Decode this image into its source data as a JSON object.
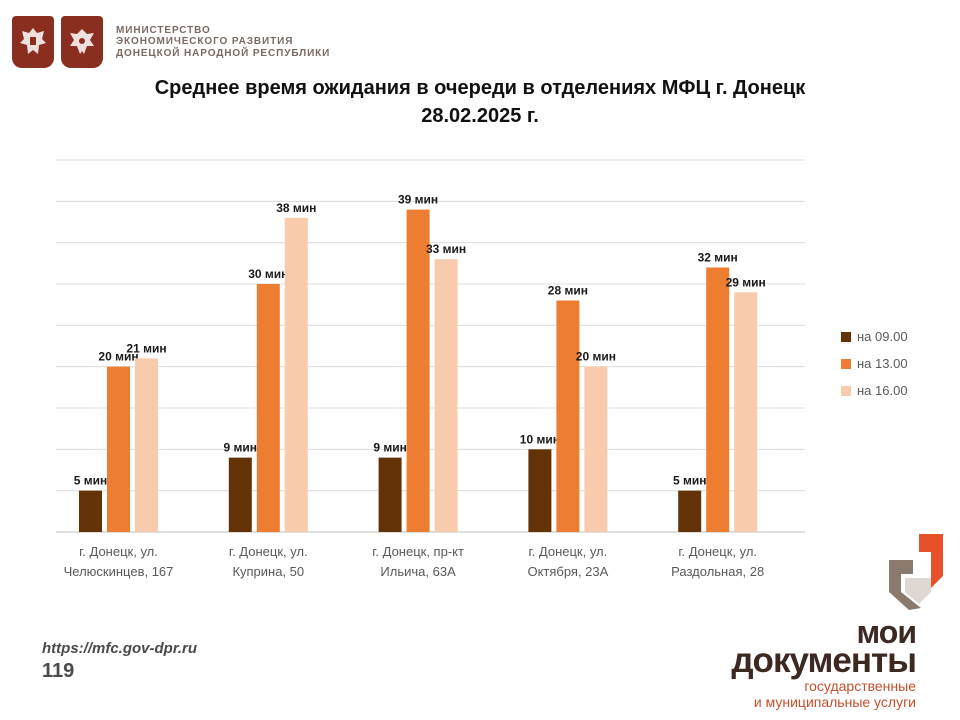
{
  "header": {
    "ministry_lines": [
      "МИНИСТЕРСТВО",
      "ЭКОНОМИЧЕСКОГО РАЗВИТИЯ",
      "ДОНЕЦКОЙ НАРОДНОЙ РЕСПУБЛИКИ"
    ],
    "emblems": [
      "russia-coat-of-arms-icon",
      "dpr-coat-of-arms-icon"
    ]
  },
  "footer": {
    "url": "https://mfc.gov-dpr.ru",
    "page": "119"
  },
  "brand": {
    "line1": "мои",
    "line2": "документы",
    "sub1": "государственные",
    "sub2": "и муниципальные услуги",
    "icon": "moi-dokumenty-logo-icon",
    "colors": {
      "orange": "#e8502a",
      "brown": "#3c2a22"
    }
  },
  "chart_data": {
    "type": "bar",
    "title": "Среднее время ожидания в очереди в отделениях МФЦ г. Донецк",
    "subtitle": "28.02.2025 г.",
    "categories": [
      [
        "г. Донецк, ул.",
        "Челюскинцев, 167"
      ],
      [
        "г. Донецк, ул.",
        "Куприна, 50"
      ],
      [
        "г. Донецк, пр-кт",
        "Ильича, 63А"
      ],
      [
        "г. Донецк, ул.",
        "Октября, 23А"
      ],
      [
        "г. Донецк, ул.",
        "Раздольная, 28"
      ]
    ],
    "series": [
      {
        "name": "на 09.00",
        "values": [
          5,
          9,
          9,
          10,
          5
        ],
        "labels": [
          "5 мин",
          "9 мин",
          "9 мин",
          "10 мин",
          "5 мин"
        ],
        "color": "#633307"
      },
      {
        "name": "на 13.00",
        "values": [
          20,
          30,
          39,
          28,
          32
        ],
        "labels": [
          "20 мин",
          "30 мин",
          "39 мин",
          "28 мин",
          "32 мин"
        ],
        "color": "#ed7d31"
      },
      {
        "name": "на 16.00",
        "values": [
          21,
          38,
          33,
          20,
          29
        ],
        "labels": [
          "21 мин",
          "38 мин",
          "33 мин",
          "20 мин",
          "29 мин"
        ],
        "color": "#f8cbad"
      }
    ],
    "ylim": [
      0,
      45
    ],
    "ygrid_step": 5,
    "grid": true,
    "legend": "right"
  }
}
